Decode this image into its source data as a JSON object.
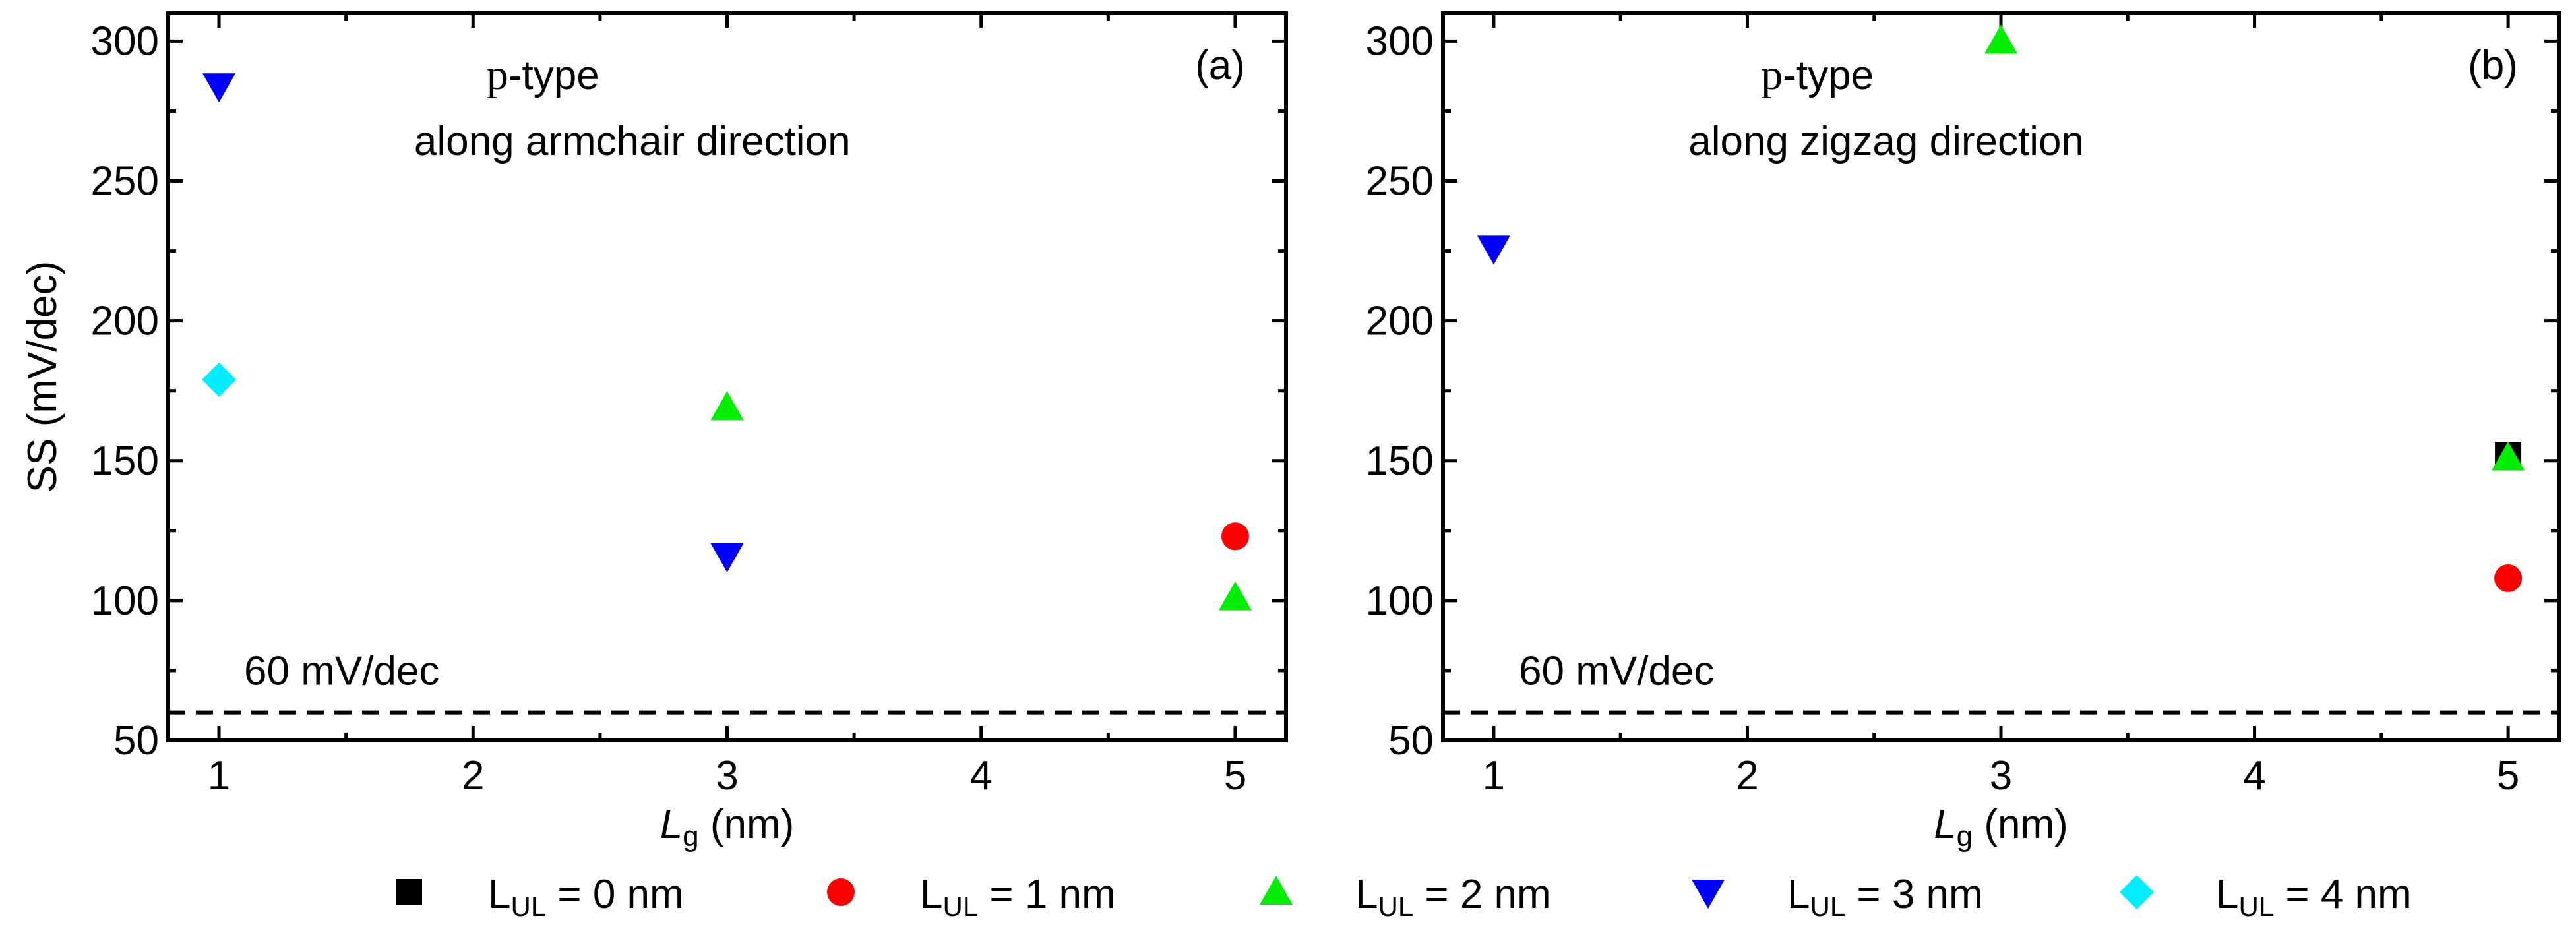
{
  "chart_data": [
    {
      "panel_label": "(a)",
      "type": "scatter",
      "xlabel": {
        "main": "L",
        "sub": "g",
        "unit": " (nm)"
      },
      "ylabel": "SS (mV/dec)",
      "xlim": [
        0.8,
        5.2
      ],
      "ylim": [
        50,
        310
      ],
      "xticks": [
        1,
        2,
        3,
        4,
        5
      ],
      "yticks": [
        50,
        100,
        150,
        200,
        250,
        300
      ],
      "annotation_prefix": "p",
      "annotation_rest": "-type",
      "annotation_line2": "along armchair direction",
      "reference_line": {
        "y": 60,
        "label": "60 mV/dec"
      },
      "series": [
        {
          "name": "L_UL = 0 nm",
          "points": []
        },
        {
          "name": "L_UL = 1 nm",
          "points": [
            [
              5,
              123
            ]
          ]
        },
        {
          "name": "L_UL = 2 nm",
          "points": [
            [
              3,
              169
            ],
            [
              5,
              101
            ]
          ]
        },
        {
          "name": "L_UL = 3 nm",
          "points": [
            [
              1,
              284
            ],
            [
              3,
              116
            ]
          ]
        },
        {
          "name": "L_UL = 4 nm",
          "points": [
            [
              1,
              179
            ]
          ]
        }
      ]
    },
    {
      "panel_label": "(b)",
      "type": "scatter",
      "xlabel": {
        "main": "L",
        "sub": "g",
        "unit": " (nm)"
      },
      "ylabel": "",
      "xlim": [
        0.8,
        5.2
      ],
      "ylim": [
        50,
        310
      ],
      "xticks": [
        1,
        2,
        3,
        4,
        5
      ],
      "yticks": [
        50,
        100,
        150,
        200,
        250,
        300
      ],
      "annotation_prefix": "p",
      "annotation_rest": "-type",
      "annotation_line2": "along zigzag direction",
      "reference_line": {
        "y": 60,
        "label": "60 mV/dec"
      },
      "series": [
        {
          "name": "L_UL = 0 nm",
          "points": [
            [
              5,
              152
            ]
          ]
        },
        {
          "name": "L_UL = 1 nm",
          "points": [
            [
              5,
              108
            ]
          ]
        },
        {
          "name": "L_UL = 2 nm",
          "points": [
            [
              3,
              300
            ],
            [
              5,
              151
            ]
          ]
        },
        {
          "name": "L_UL = 3 nm",
          "points": [
            [
              1,
              226
            ]
          ]
        },
        {
          "name": "L_UL = 4 nm",
          "points": []
        }
      ]
    }
  ],
  "legend": [
    {
      "main": "L",
      "sub": "UL",
      "text": " = 0 nm",
      "marker": "square",
      "color": "#000000"
    },
    {
      "main": "L",
      "sub": "UL",
      "text": " = 1 nm",
      "marker": "circle",
      "color": "#ff0000"
    },
    {
      "main": "L",
      "sub": "UL",
      "text": " = 2 nm",
      "marker": "triangle-up",
      "color": "#00ee00"
    },
    {
      "main": "L",
      "sub": "UL",
      "text": " = 3 nm",
      "marker": "triangle-down",
      "color": "#0000ff"
    },
    {
      "main": "L",
      "sub": "UL",
      "text": " = 4 nm",
      "marker": "diamond",
      "color": "#00eeff"
    }
  ]
}
